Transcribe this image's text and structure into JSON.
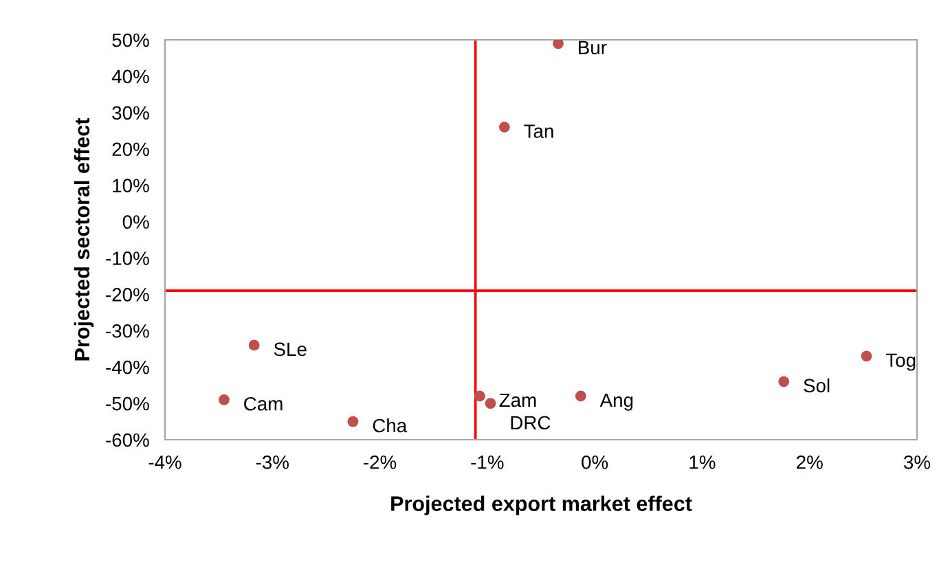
{
  "chart_data": {
    "type": "scatter",
    "xlabel": "Projected export market effect",
    "ylabel": "Projected sectoral effect",
    "x": [
      -0.34,
      -0.84,
      -3.17,
      -3.45,
      -2.25,
      -1.07,
      -0.97,
      -0.13,
      1.76,
      2.53
    ],
    "series": [
      {
        "color": "#c0504d",
        "values": [
          49,
          26,
          -34,
          -49,
          -55,
          -48,
          -50,
          -48,
          -44,
          -37
        ]
      }
    ],
    "marker": "circle",
    "grid": false,
    "legend": false,
    "xlim": [
      -4,
      3
    ],
    "xticks": [
      {
        "value": -4,
        "label": "-4%"
      },
      {
        "value": -3,
        "label": "-3%"
      },
      {
        "value": -2,
        "label": "-2%"
      },
      {
        "value": -1,
        "label": "-1%"
      },
      {
        "value": 0,
        "label": "0%"
      },
      {
        "value": 1,
        "label": "1%"
      },
      {
        "value": 2,
        "label": "2%"
      },
      {
        "value": 3,
        "label": "3%"
      }
    ],
    "ylim": [
      -60,
      50
    ],
    "yticks": [
      {
        "value": -60,
        "label": "-60%"
      },
      {
        "value": -50,
        "label": "-50%"
      },
      {
        "value": -40,
        "label": "-40%"
      },
      {
        "value": -30,
        "label": "-30%"
      },
      {
        "value": -20,
        "label": "-20%"
      },
      {
        "value": -10,
        "label": "-10%"
      },
      {
        "value": 0,
        "label": "0%"
      },
      {
        "value": 10,
        "label": "10%"
      },
      {
        "value": 20,
        "label": "20%"
      },
      {
        "value": 30,
        "label": "30%"
      },
      {
        "value": 40,
        "label": "40%"
      },
      {
        "value": 50,
        "label": "50%"
      }
    ],
    "ref_lines": [
      {
        "axis": "x",
        "value": -1.11,
        "color": "#ff0000"
      },
      {
        "axis": "y",
        "value": -19,
        "color": "#ff0000"
      }
    ],
    "annotations": [
      {
        "text": "Bur",
        "x": -0.34,
        "y": 49
      },
      {
        "text": "Tan",
        "x": -0.84,
        "y": 26
      },
      {
        "text": "SLe",
        "x": -3.17,
        "y": -34
      },
      {
        "text": "Cam",
        "x": -3.45,
        "y": -49
      },
      {
        "text": "Cha",
        "x": -2.25,
        "y": -55
      },
      {
        "text": "Zam",
        "x": -1.07,
        "y": -48
      },
      {
        "text": "DRC",
        "x": -0.97,
        "y": -50
      },
      {
        "text": "Ang",
        "x": -0.13,
        "y": -48
      },
      {
        "text": "Sol",
        "x": 1.76,
        "y": -44
      },
      {
        "text": "Tog",
        "x": 2.53,
        "y": -37
      }
    ]
  }
}
